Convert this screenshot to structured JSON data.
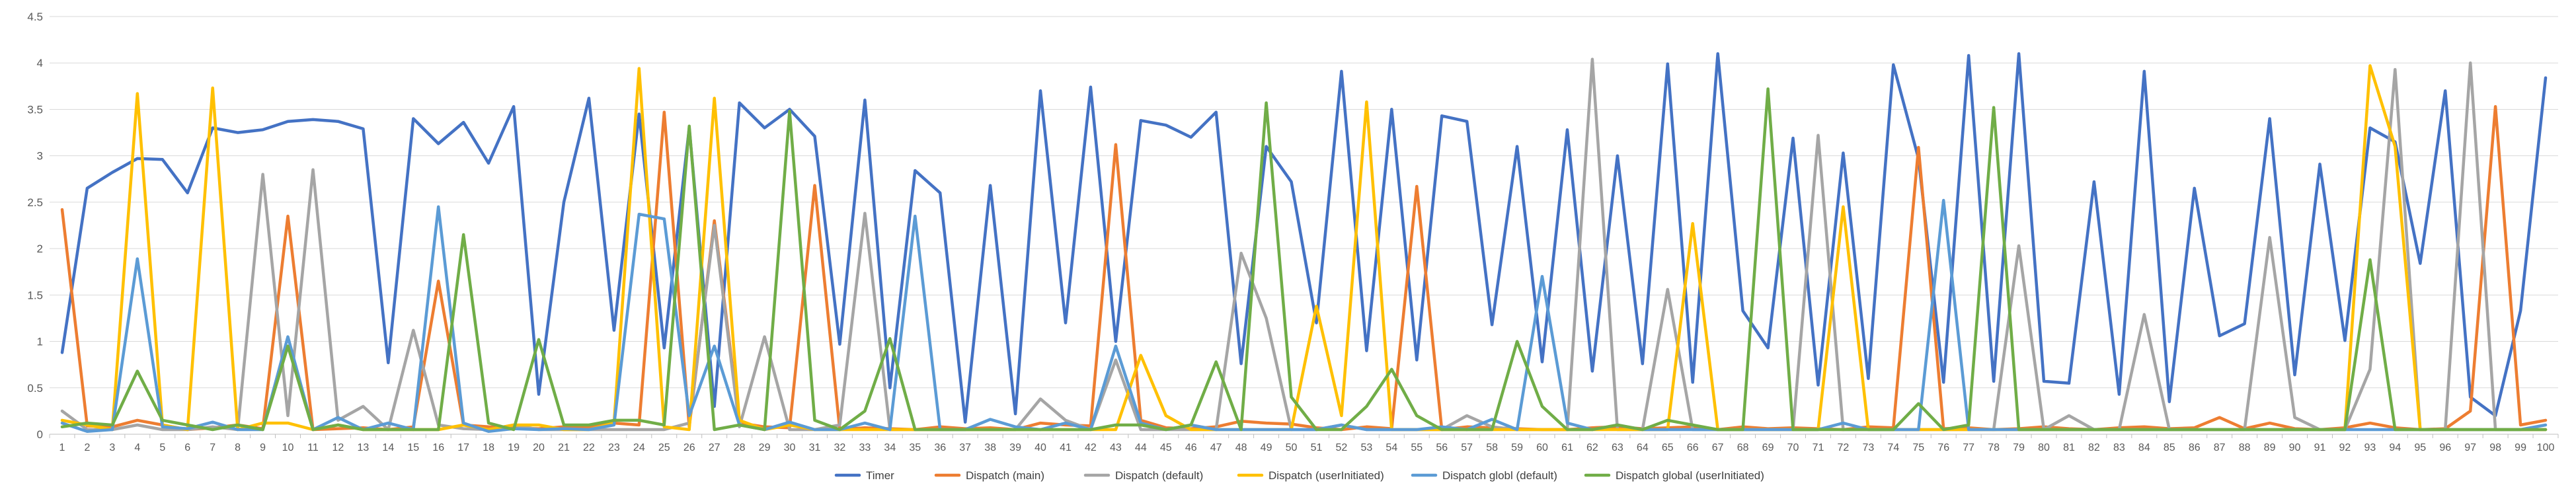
{
  "chart_data": {
    "type": "line",
    "title": "",
    "xlabel": "",
    "ylabel": "",
    "ylim": [
      0,
      4.5
    ],
    "yticks": [
      "0",
      "0.5",
      "1",
      "1.5",
      "2",
      "2.5",
      "3",
      "3.5",
      "4",
      "4.5"
    ],
    "grid": "horizontal",
    "legend_position": "bottom",
    "categories": [
      "1",
      "2",
      "3",
      "4",
      "5",
      "6",
      "7",
      "8",
      "9",
      "10",
      "11",
      "12",
      "13",
      "14",
      "15",
      "16",
      "17",
      "18",
      "19",
      "20",
      "21",
      "22",
      "23",
      "24",
      "25",
      "26",
      "27",
      "28",
      "29",
      "30",
      "31",
      "32",
      "33",
      "34",
      "35",
      "36",
      "37",
      "38",
      "39",
      "40",
      "41",
      "42",
      "43",
      "44",
      "45",
      "46",
      "47",
      "48",
      "49",
      "50",
      "51",
      "52",
      "53",
      "54",
      "55",
      "56",
      "57",
      "58",
      "59",
      "60",
      "61",
      "62",
      "63",
      "64",
      "65",
      "66",
      "67",
      "68",
      "69",
      "70",
      "71",
      "72",
      "73",
      "74",
      "75",
      "76",
      "77",
      "78",
      "79",
      "80",
      "81",
      "82",
      "83",
      "84",
      "85",
      "86",
      "87",
      "88",
      "89",
      "90",
      "91",
      "92",
      "93",
      "94",
      "95",
      "96",
      "97",
      "98",
      "99",
      "100"
    ],
    "series": [
      {
        "name": "Timer",
        "color": "#4472C4",
        "values": [
          0.88,
          2.65,
          2.82,
          2.97,
          2.96,
          2.6,
          3.3,
          3.25,
          3.28,
          3.37,
          3.39,
          3.37,
          3.29,
          0.77,
          3.4,
          3.13,
          3.36,
          2.92,
          3.53,
          0.43,
          2.5,
          3.62,
          1.12,
          3.45,
          0.93,
          3.3,
          0.3,
          3.57,
          3.3,
          3.5,
          3.21,
          0.97,
          3.6,
          0.5,
          2.84,
          2.6,
          0.13,
          2.68,
          0.22,
          3.7,
          1.2,
          3.74,
          1.0,
          3.38,
          3.33,
          3.2,
          3.47,
          0.76,
          3.1,
          2.72,
          1.2,
          3.91,
          0.9,
          3.5,
          0.8,
          3.43,
          3.37,
          1.18,
          3.1,
          0.78,
          3.28,
          0.68,
          3.0,
          0.76,
          3.99,
          0.56,
          4.1,
          1.33,
          0.93,
          3.19,
          0.53,
          3.03,
          0.6,
          3.98,
          2.97,
          0.56,
          4.08,
          0.57,
          4.1,
          0.57,
          0.55,
          2.72,
          0.43,
          3.91,
          0.35,
          2.65,
          1.06,
          1.19,
          3.4,
          0.64,
          2.91,
          1.01,
          3.3,
          3.15,
          1.84,
          3.7,
          0.4,
          0.2,
          1.33,
          3.84
        ]
      },
      {
        "name": "Dispatch (main)",
        "color": "#ED7D31",
        "values": [
          2.42,
          0.09,
          0.08,
          0.15,
          0.1,
          0.05,
          0.07,
          0.1,
          0.06,
          2.35,
          0.05,
          0.06,
          0.07,
          0.05,
          0.08,
          1.65,
          0.1,
          0.08,
          0.07,
          0.06,
          0.08,
          0.07,
          0.12,
          0.1,
          3.47,
          0.08,
          2.3,
          0.12,
          0.08,
          0.07,
          2.68,
          0.05,
          0.07,
          0.06,
          0.05,
          0.08,
          0.06,
          0.07,
          0.05,
          0.12,
          0.1,
          0.09,
          3.12,
          0.15,
          0.07,
          0.06,
          0.08,
          0.14,
          0.12,
          0.11,
          0.07,
          0.05,
          0.08,
          0.06,
          2.67,
          0.05,
          0.08,
          0.07,
          0.06,
          0.05,
          0.05,
          0.07,
          0.08,
          0.06,
          0.07,
          0.08,
          0.05,
          0.08,
          0.06,
          0.07,
          0.06,
          0.05,
          0.08,
          0.07,
          3.09,
          0.06,
          0.07,
          0.05,
          0.06,
          0.08,
          0.06,
          0.05,
          0.07,
          0.08,
          0.06,
          0.07,
          0.18,
          0.06,
          0.12,
          0.06,
          0.05,
          0.07,
          0.12,
          0.07,
          0.05,
          0.06,
          0.25,
          3.53,
          0.1,
          0.15
        ]
      },
      {
        "name": "Dispatch (default)",
        "color": "#A5A5A5",
        "values": [
          0.25,
          0.05,
          0.05,
          0.1,
          0.05,
          0.05,
          0.08,
          0.05,
          2.8,
          0.2,
          2.85,
          0.15,
          0.3,
          0.05,
          1.12,
          0.1,
          0.06,
          0.05,
          0.1,
          0.05,
          0.05,
          0.05,
          0.05,
          0.05,
          0.05,
          0.12,
          2.25,
          0.08,
          1.05,
          0.05,
          0.05,
          0.1,
          2.38,
          0.05,
          0.05,
          0.05,
          0.05,
          0.05,
          0.05,
          0.38,
          0.15,
          0.05,
          0.8,
          0.05,
          0.05,
          0.05,
          0.05,
          1.95,
          1.25,
          0.05,
          0.05,
          0.1,
          0.05,
          0.05,
          0.05,
          0.05,
          0.2,
          0.08,
          0.05,
          0.05,
          0.05,
          4.04,
          0.05,
          0.05,
          1.56,
          0.05,
          0.05,
          0.05,
          0.05,
          0.05,
          3.22,
          0.05,
          0.05,
          0.05,
          0.05,
          0.05,
          0.05,
          0.05,
          2.03,
          0.05,
          0.2,
          0.05,
          0.05,
          1.29,
          0.05,
          0.05,
          0.05,
          0.05,
          2.12,
          0.18,
          0.05,
          0.05,
          0.7,
          3.93,
          0.05,
          0.05,
          4.0,
          0.05,
          0.05,
          0.05
        ]
      },
      {
        "name": "Dispatch (userInitiated)",
        "color": "#FFC000",
        "values": [
          0.15,
          0.1,
          0.05,
          3.67,
          0.1,
          0.05,
          3.73,
          0.05,
          0.12,
          0.12,
          0.05,
          0.1,
          0.05,
          0.05,
          0.05,
          0.05,
          0.1,
          0.05,
          0.1,
          0.1,
          0.05,
          0.05,
          0.12,
          3.94,
          0.08,
          0.05,
          3.62,
          0.15,
          0.05,
          0.1,
          0.05,
          0.05,
          0.05,
          0.05,
          0.05,
          0.05,
          0.05,
          0.05,
          0.05,
          0.05,
          0.05,
          0.05,
          0.05,
          0.85,
          0.2,
          0.05,
          0.05,
          0.05,
          0.05,
          0.05,
          1.38,
          0.2,
          3.58,
          0.05,
          0.05,
          0.05,
          0.05,
          0.05,
          0.05,
          0.05,
          0.05,
          0.05,
          0.05,
          0.05,
          0.05,
          2.27,
          0.05,
          0.05,
          0.05,
          0.05,
          0.05,
          2.45,
          0.05,
          0.05,
          0.05,
          0.05,
          0.05,
          0.05,
          0.05,
          0.05,
          0.05,
          0.05,
          0.05,
          0.05,
          0.05,
          0.05,
          0.05,
          0.05,
          0.05,
          0.05,
          0.05,
          0.05,
          3.97,
          3.1,
          0.05,
          0.05,
          0.05,
          0.05,
          0.05,
          0.05
        ]
      },
      {
        "name": "Dispatch globl (default)",
        "color": "#5B9BD5",
        "values": [
          0.12,
          0.03,
          0.05,
          1.89,
          0.08,
          0.06,
          0.13,
          0.05,
          0.05,
          1.05,
          0.05,
          0.18,
          0.05,
          0.12,
          0.05,
          2.45,
          0.12,
          0.03,
          0.06,
          0.05,
          0.06,
          0.05,
          0.1,
          2.37,
          2.32,
          0.2,
          0.95,
          0.1,
          0.05,
          0.13,
          0.05,
          0.05,
          0.12,
          0.05,
          2.35,
          0.05,
          0.05,
          0.16,
          0.08,
          0.05,
          0.12,
          0.05,
          0.95,
          0.12,
          0.05,
          0.1,
          0.05,
          0.05,
          0.05,
          0.05,
          0.05,
          0.1,
          0.05,
          0.05,
          0.05,
          0.08,
          0.05,
          0.16,
          0.05,
          1.7,
          0.12,
          0.05,
          0.1,
          0.05,
          0.05,
          0.05,
          0.05,
          0.05,
          0.05,
          0.05,
          0.05,
          0.12,
          0.05,
          0.05,
          0.05,
          2.52,
          0.05,
          0.05,
          0.05,
          0.05,
          0.05,
          0.05,
          0.05,
          0.05,
          0.05,
          0.05,
          0.05,
          0.05,
          0.05,
          0.05,
          0.05,
          0.05,
          0.05,
          0.05,
          0.05,
          0.05,
          0.05,
          0.05,
          0.05,
          0.1
        ]
      },
      {
        "name": "Dispatch global (userInitiated)",
        "color": "#70AD47",
        "values": [
          0.08,
          0.12,
          0.1,
          0.68,
          0.15,
          0.1,
          0.05,
          0.1,
          0.05,
          0.95,
          0.05,
          0.1,
          0.05,
          0.05,
          0.05,
          0.05,
          2.15,
          0.12,
          0.05,
          1.02,
          0.1,
          0.1,
          0.15,
          0.15,
          0.1,
          3.32,
          0.05,
          0.1,
          0.05,
          3.48,
          0.15,
          0.05,
          0.25,
          1.03,
          0.05,
          0.05,
          0.05,
          0.05,
          0.05,
          0.05,
          0.05,
          0.05,
          0.1,
          0.1,
          0.05,
          0.1,
          0.78,
          0.05,
          3.57,
          0.4,
          0.05,
          0.05,
          0.3,
          0.7,
          0.2,
          0.05,
          0.05,
          0.05,
          1.0,
          0.3,
          0.05,
          0.05,
          0.1,
          0.05,
          0.15,
          0.1,
          0.05,
          0.05,
          3.72,
          0.05,
          0.05,
          0.05,
          0.05,
          0.05,
          0.33,
          0.05,
          0.1,
          3.52,
          0.05,
          0.05,
          0.05,
          0.05,
          0.05,
          0.05,
          0.05,
          0.05,
          0.05,
          0.05,
          0.05,
          0.05,
          0.05,
          0.05,
          1.88,
          0.05,
          0.05,
          0.05,
          0.05,
          0.05,
          0.05,
          0.05
        ]
      }
    ]
  }
}
